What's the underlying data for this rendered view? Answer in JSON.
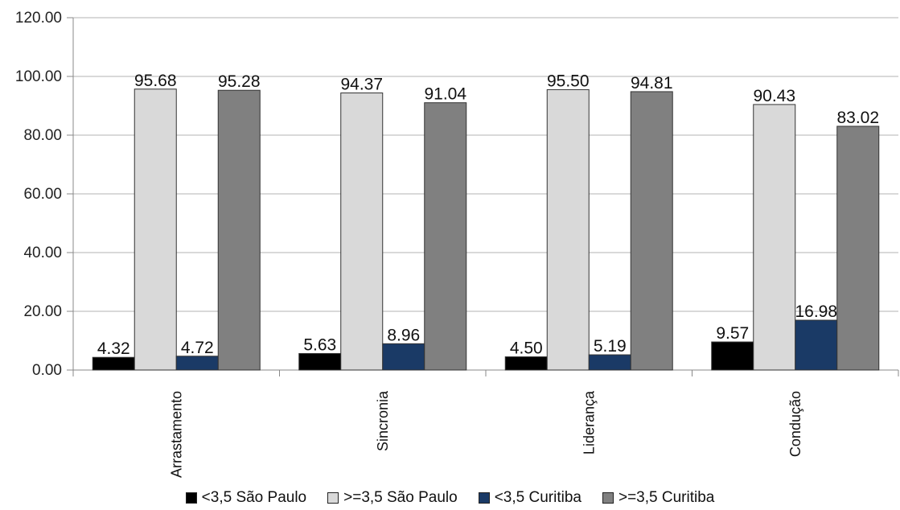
{
  "chart_data": {
    "type": "bar",
    "categories": [
      "Arrastamento",
      "Sincronia",
      "Liderança",
      "Condução"
    ],
    "series": [
      {
        "name": "<3,5 São Paulo",
        "values": [
          4.32,
          5.63,
          4.5,
          9.57
        ],
        "color": "#000000"
      },
      {
        "name": ">=3,5 São Paulo",
        "values": [
          95.68,
          94.37,
          95.5,
          90.43
        ],
        "color": "#d9d9d9"
      },
      {
        "name": "<3,5 Curitiba",
        "values": [
          4.72,
          8.96,
          5.19,
          16.98
        ],
        "color": "#1a3a66"
      },
      {
        "name": ">=3,5 Curitiba",
        "values": [
          95.28,
          91.04,
          94.81,
          83.02
        ],
        "color": "#808080"
      }
    ],
    "value_labels": [
      [
        "4.32",
        "5.63",
        "4.50",
        "9.57"
      ],
      [
        "95.68",
        "94.37",
        "95.50",
        "90.43"
      ],
      [
        "4.72",
        "8.96",
        "5.19",
        "16.98"
      ],
      [
        "95.28",
        "91.04",
        "94.81",
        "83.02"
      ]
    ],
    "yticks": [
      "0.00",
      "20.00",
      "40.00",
      "60.00",
      "80.00",
      "100.00",
      "120.00"
    ],
    "ylim": [
      0,
      120
    ],
    "grid": true,
    "legend_position": "bottom"
  }
}
